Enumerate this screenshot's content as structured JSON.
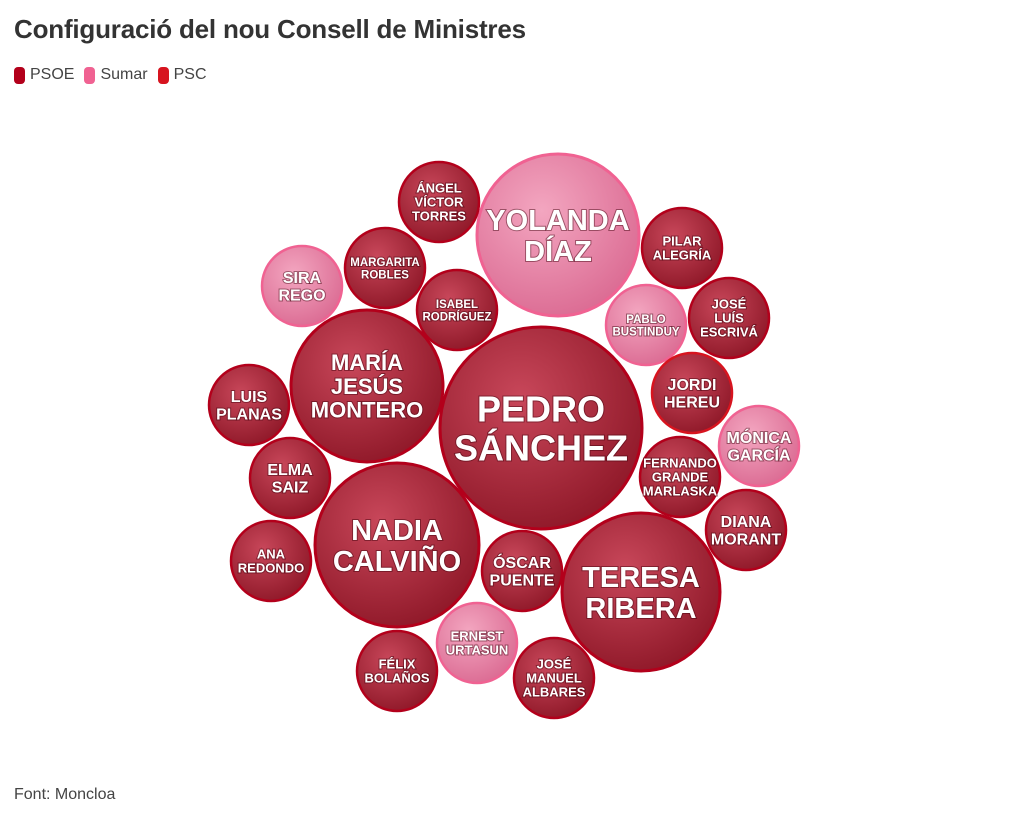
{
  "title": "Configuració del nou Consell de Ministres",
  "source": "Font: Moncloa",
  "legend": [
    {
      "label": "PSOE",
      "color": "#b3001b"
    },
    {
      "label": "Sumar",
      "color": "#f06292"
    },
    {
      "label": "PSC",
      "color": "#d7141f"
    }
  ],
  "chart_data": {
    "type": "bubble",
    "title": "Configuració del nou Consell de Ministres",
    "legend_position": "top-left",
    "series": [
      {
        "name": "PSOE",
        "color": "#b3001b"
      },
      {
        "name": "Sumar",
        "color": "#f06292"
      },
      {
        "name": "PSC",
        "color": "#d7141f"
      }
    ],
    "bubbles": [
      {
        "label": [
          "PEDRO",
          "SÁNCHEZ"
        ],
        "party": "PSOE",
        "size": 3
      },
      {
        "label": [
          "YOLANDA",
          "DÍAZ"
        ],
        "party": "Sumar",
        "size": 2
      },
      {
        "label": [
          "MARÍA",
          "JESÚS",
          "MONTERO"
        ],
        "party": "PSOE",
        "size": 2
      },
      {
        "label": [
          "NADIA",
          "CALVIÑO"
        ],
        "party": "PSOE",
        "size": 2
      },
      {
        "label": [
          "TERESA",
          "RIBERA"
        ],
        "party": "PSOE",
        "size": 2
      },
      {
        "label": [
          "ÁNGEL",
          "VÍCTOR",
          "TORRES"
        ],
        "party": "PSOE",
        "size": 1
      },
      {
        "label": [
          "PILAR",
          "ALEGRÍA"
        ],
        "party": "PSOE",
        "size": 1
      },
      {
        "label": [
          "SIRA",
          "REGO"
        ],
        "party": "Sumar",
        "size": 1
      },
      {
        "label": [
          "MARGARITA",
          "ROBLES"
        ],
        "party": "PSOE",
        "size": 1
      },
      {
        "label": [
          "ISABEL",
          "RODRÍGUEZ"
        ],
        "party": "PSOE",
        "size": 1
      },
      {
        "label": [
          "PABLO",
          "BUSTINDUY"
        ],
        "party": "Sumar",
        "size": 1
      },
      {
        "label": [
          "JOSÉ",
          "LUÍS",
          "ESCRIVÁ"
        ],
        "party": "PSOE",
        "size": 1
      },
      {
        "label": [
          "JORDI",
          "HEREU"
        ],
        "party": "PSC",
        "size": 1
      },
      {
        "label": [
          "LUIS",
          "PLANAS"
        ],
        "party": "PSOE",
        "size": 1
      },
      {
        "label": [
          "MÓNICA",
          "GARCÍA"
        ],
        "party": "Sumar",
        "size": 1
      },
      {
        "label": [
          "FERNANDO",
          "GRANDE",
          "MARLASKA"
        ],
        "party": "PSOE",
        "size": 1
      },
      {
        "label": [
          "ELMA",
          "SAIZ"
        ],
        "party": "PSOE",
        "size": 1
      },
      {
        "label": [
          "DIANA",
          "MORANT"
        ],
        "party": "PSOE",
        "size": 1
      },
      {
        "label": [
          "ANA",
          "REDONDO"
        ],
        "party": "PSOE",
        "size": 1
      },
      {
        "label": [
          "ÓSCAR",
          "PUENTE"
        ],
        "party": "PSOE",
        "size": 1
      },
      {
        "label": [
          "ERNEST",
          "URTASUN"
        ],
        "party": "Sumar",
        "size": 1
      },
      {
        "label": [
          "FÉLIX",
          "BOLAÑOS"
        ],
        "party": "PSOE",
        "size": 1
      },
      {
        "label": [
          "JOSÉ",
          "MANUEL",
          "ALBARES"
        ],
        "party": "PSOE",
        "size": 1
      }
    ]
  }
}
